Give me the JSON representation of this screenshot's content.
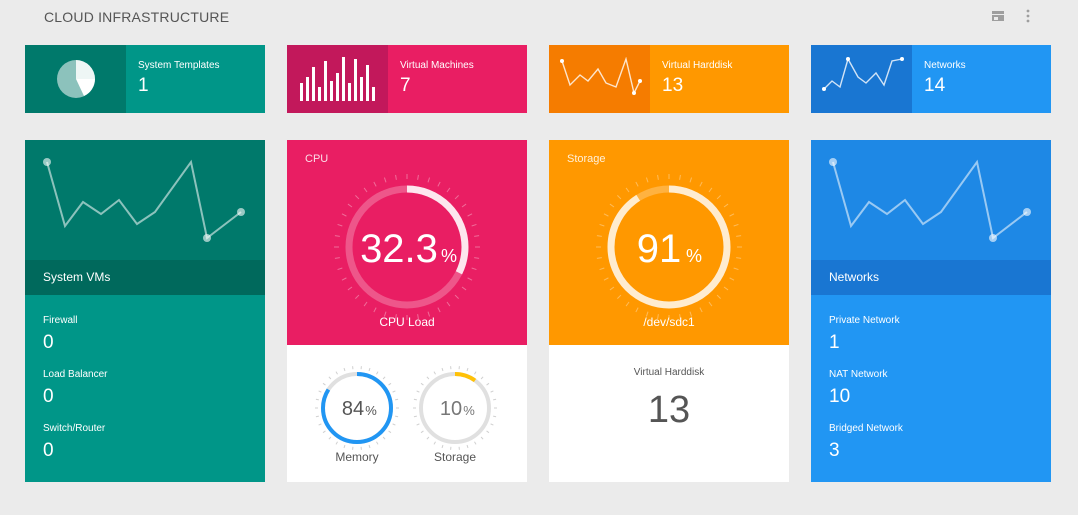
{
  "header": {
    "title": "CLOUD INFRASTRUCTURE",
    "store_icon": "store-icon",
    "menu_icon": "more-vert-icon"
  },
  "stats": [
    {
      "label": "System Templates",
      "value": "1",
      "icon": "pie-chart-icon"
    },
    {
      "label": "Virtual Machines",
      "value": "7",
      "icon": "bar-chart-icon"
    },
    {
      "label": "Virtual Harddisk",
      "value": "13",
      "icon": "line-chart-icon"
    },
    {
      "label": "Networks",
      "value": "14",
      "icon": "line-chart-icon"
    }
  ],
  "system_vms": {
    "title": "System VMs",
    "items": [
      {
        "label": "Firewall",
        "value": "0"
      },
      {
        "label": "Load Balancer",
        "value": "0"
      },
      {
        "label": "Switch/Router",
        "value": "0"
      }
    ]
  },
  "cpu": {
    "title": "CPU",
    "value": "32.3",
    "unit": "%",
    "caption": "CPU Load",
    "level": 0.323,
    "sub": [
      {
        "value": "84",
        "unit": "%",
        "label": "Memory",
        "level": 0.84
      },
      {
        "value": "10",
        "unit": "%",
        "label": "Storage",
        "level": 0.1
      }
    ]
  },
  "storage": {
    "title": "Storage",
    "value": "91",
    "unit": "%",
    "caption": "/dev/sdc1",
    "level": 0.91,
    "sub_label": "Virtual Harddisk",
    "sub_value": "13"
  },
  "networks": {
    "title": "Networks",
    "items": [
      {
        "label": "Private Network",
        "value": "1"
      },
      {
        "label": "NAT Network",
        "value": "10"
      },
      {
        "label": "Bridged Network",
        "value": "3"
      }
    ]
  },
  "colors": {
    "teal": "#009688",
    "pink": "#e91e63",
    "orange": "#ff9800",
    "blue": "#2196f3",
    "memory_ring": "#2196f3",
    "storage_ring": "#ffc107"
  }
}
